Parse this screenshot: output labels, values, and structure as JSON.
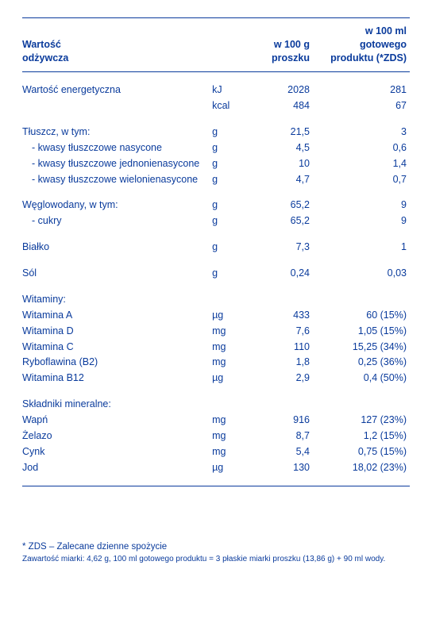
{
  "colors": {
    "primary": "#0a3b9c",
    "background": "#ffffff"
  },
  "headers": {
    "col1_a": "Wartość",
    "col1_b": "odżywcza",
    "col3_a": "w 100 g",
    "col3_b": "proszku",
    "col4_a": "w 100 ml",
    "col4_b": "gotowego",
    "col4_c": "produktu (*ZDS)"
  },
  "energy": {
    "label": "Wartość energetyczna",
    "unit1": "kJ",
    "v1a": "2028",
    "v1b": "281",
    "unit2": "kcal",
    "v2a": "484",
    "v2b": "67"
  },
  "fat": {
    "label": "Tłuszcz, w tym:",
    "unit": "g",
    "v1": "21,5",
    "v2": "3",
    "sat": {
      "label": "- kwasy tłuszczowe nasycone",
      "unit": "g",
      "v1": "4,5",
      "v2": "0,6"
    },
    "mono": {
      "label": "- kwasy tłuszczowe jednonienasycone",
      "unit": "g",
      "v1": "10",
      "v2": "1,4"
    },
    "poly": {
      "label": "- kwasy tłuszczowe wielonienasycone",
      "unit": "g",
      "v1": "4,7",
      "v2": "0,7"
    }
  },
  "carbs": {
    "label": "Węglowodany, w tym:",
    "unit": "g",
    "v1": "65,2",
    "v2": "9",
    "sugar": {
      "label": "- cukry",
      "unit": "g",
      "v1": "65,2",
      "v2": "9"
    }
  },
  "protein": {
    "label": "Białko",
    "unit": "g",
    "v1": "7,3",
    "v2": "1"
  },
  "salt": {
    "label": "Sól",
    "unit": "g",
    "v1": "0,24",
    "v2": "0,03"
  },
  "vit_header": "Witaminy:",
  "vitA": {
    "label": "Witamina A",
    "unit": "µg",
    "v1": "433",
    "v2": "60 (15%)"
  },
  "vitD": {
    "label": "Witamina D",
    "unit": "mg",
    "v1": "7,6",
    "v2": "1,05 (15%)"
  },
  "vitC": {
    "label": "Witamina C",
    "unit": "mg",
    "v1": "110",
    "v2": "15,25 (34%)"
  },
  "vitB2": {
    "label": "Ryboflawina (B2)",
    "unit": "mg",
    "v1": "1,8",
    "v2": "0,25 (36%)"
  },
  "vitB12": {
    "label": "Witamina B12",
    "unit": "µg",
    "v1": "2,9",
    "v2": "0,4 (50%)"
  },
  "min_header": "Składniki mineralne:",
  "ca": {
    "label": "Wapń",
    "unit": "mg",
    "v1": "916",
    "v2": "127 (23%)"
  },
  "fe": {
    "label": "Żelazo",
    "unit": "mg",
    "v1": "8,7",
    "v2": "1,2 (15%)"
  },
  "zn": {
    "label": "Cynk",
    "unit": "mg",
    "v1": "5,4",
    "v2": "0,75 (15%)"
  },
  "i": {
    "label": "Jod",
    "unit": "µg",
    "v1": "130",
    "v2": "18,02 (23%)"
  },
  "footnote1": "* ZDS – Zalecane dzienne spożycie",
  "footnote2": "Zawartość miarki: 4,62 g, 100 ml gotowego produktu = 3 płaskie miarki proszku (13,86 g) + 90 ml wody."
}
